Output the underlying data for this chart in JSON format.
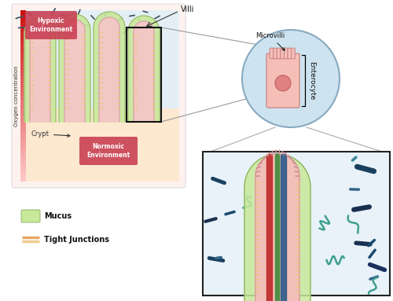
{
  "bg_color": "#ffffff",
  "left_panel_bg": "#fef2ee",
  "hypoxic_label": "Hypoxic\nEnvironment",
  "hypoxic_box_color": "#c94054",
  "normoxic_label": "Normoxic\nEnvironment",
  "normoxic_box_color": "#c94054",
  "villi_label": "Villi",
  "crypt_label": "Crypt",
  "oxygen_label": "Oxygen concentration",
  "mucus_label": "Mucus",
  "tight_junctions_label": "Tight Junctions",
  "microvilli_label": "Microvilli",
  "enterocyte_label": "Enterocyte",
  "mucus_color": "#c8e89a",
  "villus_inner_color": "#f2c8c4",
  "villus_border_color": "#d4a0a0",
  "tight_junction_color": "#e8c87a",
  "lumen_bg": "#e4eff5",
  "crypt_bg": "#fde8d0",
  "circle_bg": "#cde4f0",
  "circle_border": "#88aac0",
  "zoom_box_border": "#222222",
  "zoom_box_bg": "#e8f2f8",
  "oxygen_bar_top": "#cc1111",
  "oxygen_bar_bot": "#ffcccc"
}
